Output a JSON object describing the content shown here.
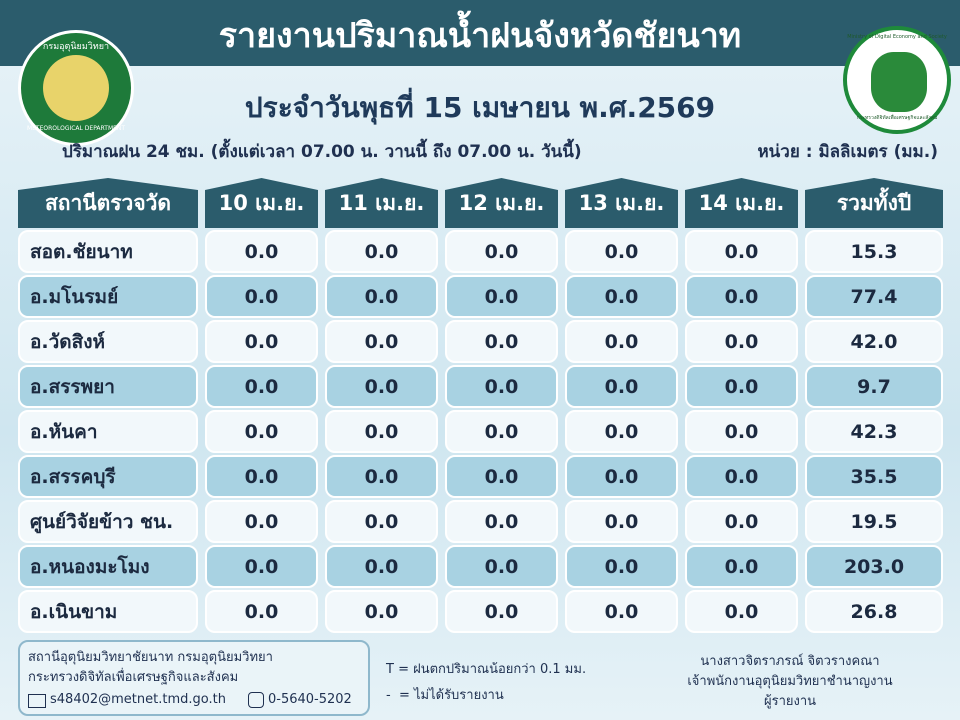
{
  "header": {
    "title": "รายงานปริมาณน้ำฝนจังหวัดชัยนาท",
    "date": "ประจำวันพุธที่ 15 เมษายน พ.ศ.2569",
    "subtitle": "ปริมาณฝน 24 ชม. (ตั้งแต่เวลา 07.00 น. วานนี้ ถึง 07.00 น. วันนี้)",
    "unit": "หน่วย : มิลลิเมตร (มม.)",
    "left_logo": {
      "top_text": "กรมอุตุนิยมวิทยา",
      "bottom_text": "METEOROLOGICAL DEPARTMENT"
    },
    "right_logo": {
      "top_text": "กระทรวงดิจิทัลเพื่อเศรษฐกิจและสังคม",
      "side_text": "Ministry of Digital Economy and Society"
    }
  },
  "table": {
    "columns": [
      "สถานีตรวจวัด",
      "10 เม.ย.",
      "11 เม.ย.",
      "12 เม.ย.",
      "13 เม.ย.",
      "14 เม.ย.",
      "รวมทั้งปี"
    ],
    "rows": [
      [
        "สอต.ชัยนาท",
        "0.0",
        "0.0",
        "0.0",
        "0.0",
        "0.0",
        "15.3"
      ],
      [
        "อ.มโนรมย์",
        "0.0",
        "0.0",
        "0.0",
        "0.0",
        "0.0",
        "77.4"
      ],
      [
        "อ.วัดสิงห์",
        "0.0",
        "0.0",
        "0.0",
        "0.0",
        "0.0",
        "42.0"
      ],
      [
        "อ.สรรพยา",
        "0.0",
        "0.0",
        "0.0",
        "0.0",
        "0.0",
        "9.7"
      ],
      [
        "อ.หันคา",
        "0.0",
        "0.0",
        "0.0",
        "0.0",
        "0.0",
        "42.3"
      ],
      [
        "อ.สรรคบุรี",
        "0.0",
        "0.0",
        "0.0",
        "0.0",
        "0.0",
        "35.5"
      ],
      [
        "ศูนย์วิจัยข้าว ชน.",
        "0.0",
        "0.0",
        "0.0",
        "0.0",
        "0.0",
        "19.5"
      ],
      [
        "อ.หนองมะโมง",
        "0.0",
        "0.0",
        "0.0",
        "0.0",
        "0.0",
        "203.0"
      ],
      [
        "อ.เนินขาม",
        "0.0",
        "0.0",
        "0.0",
        "0.0",
        "0.0",
        "26.8"
      ]
    ]
  },
  "footer": {
    "org_lines": [
      "สถานีอุตุนิยมวิทยาชัยนาท กรมอุตุนิยมวิทยา",
      "กระทรวงดิจิทัลเพื่อเศรษฐกิจและสังคม"
    ],
    "email": "s48402@metnet.tmd.go.th",
    "phone": "0-5640-5202",
    "legend": [
      "T = ฝนตกปริมาณน้อยกว่า 0.1 มม.",
      "-  = ไม่ได้รับรายงาน"
    ],
    "signer": {
      "name": "นางสาวจิตราภรณ์ จิตวรางคณา",
      "position": "เจ้าพนักงานอุตุนิยมวิทยาชำนาญงาน",
      "role": "ผู้รายงาน"
    }
  }
}
